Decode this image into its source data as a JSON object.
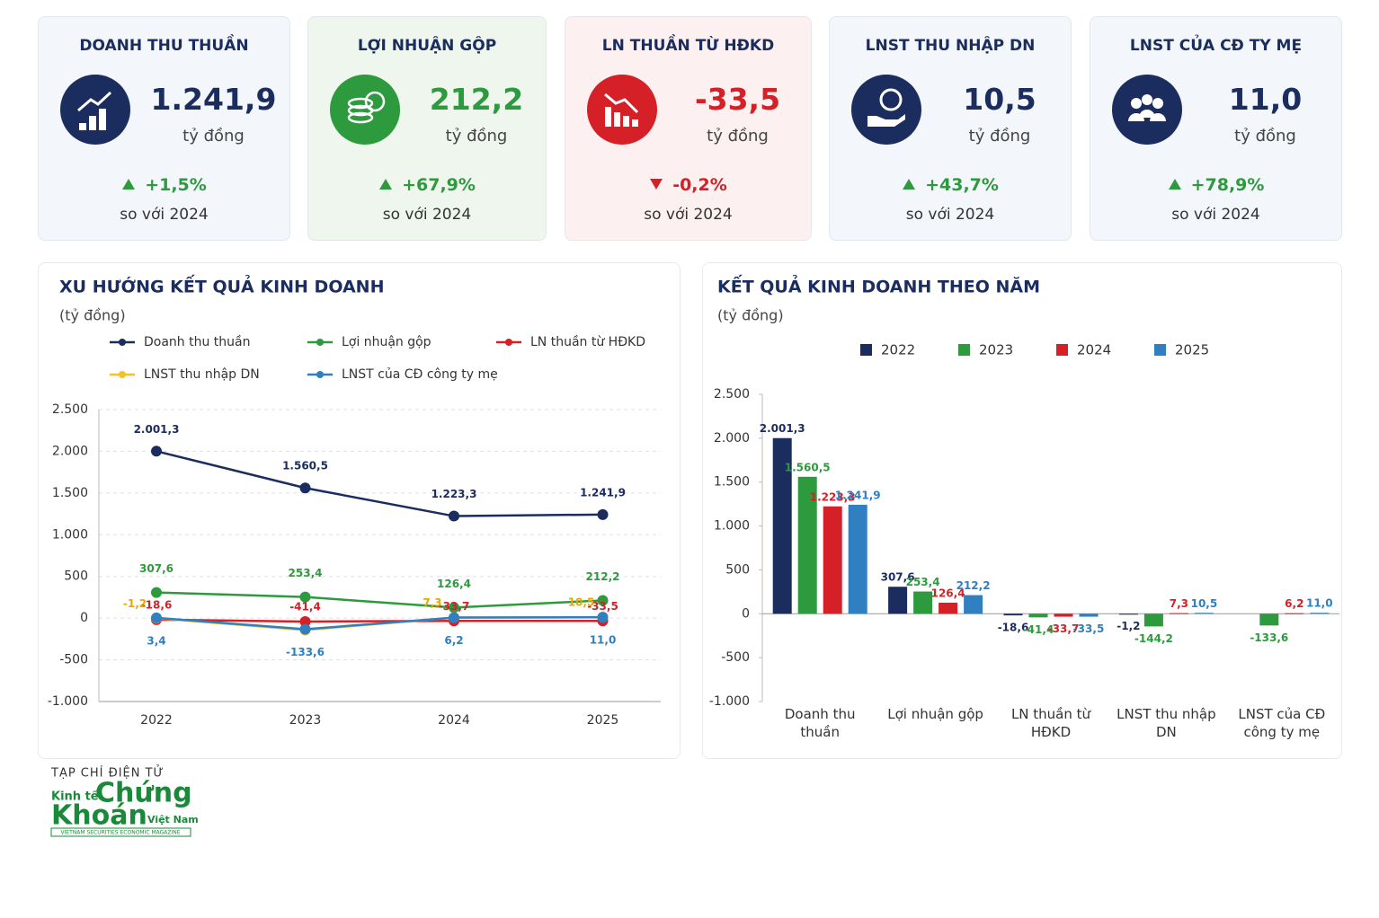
{
  "cards": [
    {
      "title": "DOANH THU THUẦN",
      "value": "1.241,9",
      "unit": "tỷ đồng",
      "change": "+1,5%",
      "compare": "so với 2024",
      "trend": "up",
      "icon_color": "#1b2d5f",
      "value_color": "#1b2d5f",
      "background": "#f3f6fa"
    },
    {
      "title": "LỢI NHUẬN GỘP",
      "value": "212,2",
      "unit": "tỷ đồng",
      "change": "+67,9%",
      "compare": "so với 2024",
      "trend": "up",
      "icon_color": "#2e9a3e",
      "value_color": "#2e9a3e",
      "background": "#eef6ee"
    },
    {
      "title": "LN THUẦN TỪ HĐKD",
      "value": "-33,5",
      "unit": "tỷ đồng",
      "change": "-0,2%",
      "compare": "so với 2024",
      "trend": "down",
      "icon_color": "#d42026",
      "value_color": "#d42026",
      "background": "#fdf0f0"
    },
    {
      "title": "LNST THU NHẬP DN",
      "value": "10,5",
      "unit": "tỷ đồng",
      "change": "+43,7%",
      "compare": "so với 2024",
      "trend": "up",
      "icon_color": "#1b2d5f",
      "value_color": "#1b2d5f",
      "background": "#f3f6fa"
    },
    {
      "title": "LNST CỦA CĐ TY MẸ",
      "value": "11,0",
      "unit": "tỷ đồng",
      "change": "+78,9%",
      "compare": "so với 2024",
      "trend": "up",
      "icon_color": "#1b2d5f",
      "value_color": "#1b2d5f",
      "background": "#f3f6fa"
    }
  ],
  "chart_data": [
    {
      "type": "line",
      "title": "XU HƯỚNG KẾT QUẢ KINH DOANH",
      "subtitle": "(tỷ đồng)",
      "categories": [
        "2022",
        "2023",
        "2024",
        "2025"
      ],
      "ylim": [
        -1000,
        2500
      ],
      "yticks": [
        {
          "value": 2500,
          "label": "2.500"
        },
        {
          "value": 2000,
          "label": "2.000"
        },
        {
          "value": 1500,
          "label": "1.500"
        },
        {
          "value": 1000,
          "label": "1.000"
        },
        500,
        0,
        -500,
        {
          "value": -1000,
          "label": "-1.000"
        }
      ],
      "grid": true,
      "series": [
        {
          "name": "Doanh thu thuần",
          "color": "#1b2d5f",
          "values": [
            2001.3,
            1560.5,
            1223.3,
            1241.9
          ],
          "value_labels": [
            "2.001,3",
            "1.560,5",
            "1.223,3",
            "1.241,9"
          ]
        },
        {
          "name": "Lợi nhuận gộp",
          "color": "#2e9a3e",
          "values": [
            307.6,
            253.4,
            126.4,
            212.2
          ],
          "value_labels": [
            "307,6",
            "253,4",
            "126,4",
            "212,2"
          ]
        },
        {
          "name": "LN thuần từ HĐKD",
          "color": "#d42026",
          "values": [
            -18.6,
            -41.4,
            -33.7,
            -33.5
          ],
          "value_labels": [
            "-18,6",
            "-41,4",
            "-33,7",
            "-33,5"
          ]
        },
        {
          "name": "LNST thu nhập DN",
          "color": "#f5c02a",
          "values": [
            -1.2,
            -144.2,
            7.3,
            10.5
          ],
          "value_labels": [
            "-1,2",
            null,
            "7,3",
            "10,5"
          ]
        },
        {
          "name": "LNST của CĐ công ty mẹ",
          "color": "#2f7fc1",
          "values": [
            3.4,
            -133.6,
            6.2,
            11.0
          ],
          "value_labels": [
            "3,4",
            "-133,6",
            "6,2",
            "11,0"
          ]
        }
      ]
    },
    {
      "type": "bar",
      "title": "KẾT QUẢ KINH DOANH THEO NĂM",
      "subtitle": "(tỷ đồng)",
      "categories": [
        "Doanh thu thuần",
        "Lợi nhuận gộp",
        "LN thuần từ HĐKD",
        "LNST thu nhập DN",
        "LNST của CĐ công ty mẹ"
      ],
      "ylim": [
        -1000,
        2500
      ],
      "yticks": [
        {
          "value": 2500,
          "label": "2.500"
        },
        {
          "value": 2000,
          "label": "2.000"
        },
        {
          "value": 1500,
          "label": "1.500"
        },
        {
          "value": 1000,
          "label": "1.000"
        },
        500,
        0,
        -500,
        {
          "value": -1000,
          "label": "-1.000"
        }
      ],
      "series": [
        {
          "name": "2022",
          "color": "#1b2d5f",
          "values": [
            2001.3,
            307.6,
            -18.6,
            -1.2,
            null
          ],
          "value_labels": [
            "2.001,3",
            "307,6",
            "-18,6",
            "-1,2",
            null
          ]
        },
        {
          "name": "2023",
          "color": "#2e9a3e",
          "values": [
            1560.5,
            253.4,
            -41.4,
            -144.2,
            -133.6
          ],
          "value_labels": [
            "1.560,5",
            "253,4",
            "-41,4",
            "-144,2",
            "-133,6"
          ]
        },
        {
          "name": "2024",
          "color": "#d42026",
          "values": [
            1223.3,
            126.4,
            -33.7,
            7.3,
            6.2
          ],
          "value_labels": [
            "1.223,3",
            "126,4",
            "-33,7",
            "7,3",
            "6,2"
          ]
        },
        {
          "name": "2025",
          "color": "#2f7fc1",
          "values": [
            1241.9,
            212.2,
            -33.5,
            10.5,
            11.0
          ],
          "value_labels": [
            "1.241,9",
            "212,2",
            "-33,5",
            "10,5",
            "11,0"
          ]
        }
      ]
    }
  ],
  "logo": {
    "kicker": "TẠP CHÍ ĐIỆN TỬ",
    "word1": "Kinh tế",
    "word2": "Chứng",
    "word3": "Khoán",
    "word4": "Việt Nam",
    "tagline": "VIETNAM SECURITIES ECONOMIC MAGAZINE"
  }
}
